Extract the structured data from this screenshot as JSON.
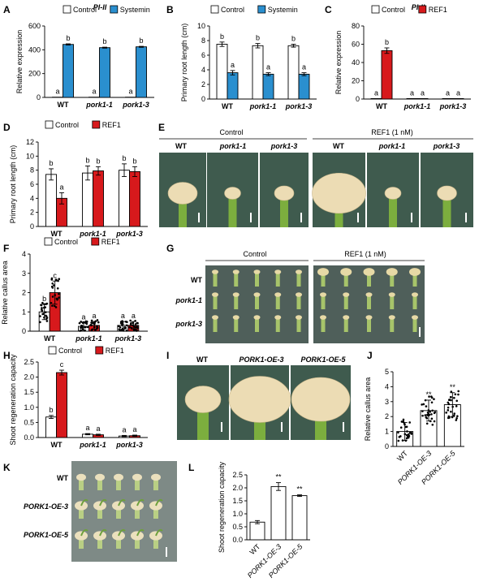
{
  "colors": {
    "control": "#ffffff",
    "systemin": "#2a8fcf",
    "ref1": "#d7191c",
    "photo_bg": "#3f5b4e",
    "stem": "#7cae3e",
    "callus": "#ecdcb4",
    "tray": "#7e8a86"
  },
  "panel_labels": {
    "A": "A",
    "B": "B",
    "C": "C",
    "D": "D",
    "E": "E",
    "F": "F",
    "G": "G",
    "H": "H",
    "I": "I",
    "J": "J",
    "K": "K",
    "L": "L"
  },
  "photo_E": {
    "group1": "Control",
    "group2": "REF1 (1 nM)",
    "cols": [
      "WT",
      "pork1-1",
      "pork1-3",
      "WT",
      "pork1-1",
      "pork1-3"
    ]
  },
  "photo_G": {
    "group1": "Control",
    "group2": "REF1 (1 nM)",
    "rows": [
      "WT",
      "pork1-1",
      "pork1-3"
    ]
  },
  "photo_I": {
    "cols": [
      "WT",
      "PORK1-OE-3",
      "PORK1-OE-5"
    ]
  },
  "photo_K": {
    "rows": [
      "WT",
      "PORK1-OE-3",
      "PORK1-OE-5"
    ]
  },
  "chart_data": [
    {
      "panel": "A",
      "type": "bar",
      "title": "PI-II",
      "ylabel": "Relative expression",
      "ylim": [
        0,
        600
      ],
      "yticks": [
        0,
        200,
        400,
        600
      ],
      "categories": [
        "WT",
        "pork1-1",
        "pork1-3"
      ],
      "series": [
        {
          "name": "Control",
          "values": [
            2,
            2,
            2
          ],
          "err": [
            0,
            0,
            0
          ],
          "letters": [
            "a",
            "a",
            "a"
          ]
        },
        {
          "name": "Systemin",
          "values": [
            445,
            418,
            425
          ],
          "err": [
            5,
            4,
            4
          ],
          "letters": [
            "b",
            "b",
            "b"
          ]
        }
      ]
    },
    {
      "panel": "B",
      "type": "bar",
      "title": "",
      "ylabel": "Primary root length (cm)",
      "ylim": [
        0,
        10
      ],
      "yticks": [
        0,
        2,
        4,
        6,
        8,
        10
      ],
      "categories": [
        "WT",
        "pork1-1",
        "pork1-3"
      ],
      "series": [
        {
          "name": "Control",
          "values": [
            7.5,
            7.3,
            7.3
          ],
          "err": [
            0.3,
            0.3,
            0.2
          ],
          "letters": [
            "b",
            "b",
            "b"
          ]
        },
        {
          "name": "Systemin",
          "values": [
            3.6,
            3.4,
            3.4
          ],
          "err": [
            0.3,
            0.2,
            0.2
          ],
          "letters": [
            "a",
            "a",
            "a"
          ]
        }
      ]
    },
    {
      "panel": "C",
      "type": "bar",
      "title": "PI-II",
      "ylabel": "Relative expression",
      "ylim": [
        0,
        80
      ],
      "yticks": [
        0,
        20,
        40,
        60,
        80
      ],
      "categories": [
        "WT",
        "pork1-1",
        "pork1-3"
      ],
      "series": [
        {
          "name": "Control",
          "values": [
            0.5,
            0.5,
            0.5
          ],
          "err": [
            0,
            0,
            0
          ],
          "letters": [
            "a",
            "a",
            "a"
          ]
        },
        {
          "name": "REF1",
          "values": [
            53,
            0.5,
            0.5
          ],
          "err": [
            3,
            0,
            0
          ],
          "letters": [
            "b",
            "a",
            "a"
          ]
        }
      ]
    },
    {
      "panel": "D",
      "type": "bar",
      "title": "",
      "ylabel": "Primary root length (cm)",
      "ylim": [
        0,
        12
      ],
      "yticks": [
        0,
        2,
        4,
        6,
        8,
        10,
        12
      ],
      "categories": [
        "WT",
        "pork1-1",
        "pork1-3"
      ],
      "series": [
        {
          "name": "Control",
          "values": [
            7.4,
            7.6,
            8.0
          ],
          "err": [
            0.8,
            1.0,
            0.9
          ],
          "letters": [
            "b",
            "b",
            "b"
          ]
        },
        {
          "name": "REF1",
          "values": [
            4.0,
            7.9,
            7.8
          ],
          "err": [
            0.8,
            0.6,
            0.7
          ],
          "letters": [
            "a",
            "b",
            "b"
          ]
        }
      ]
    },
    {
      "panel": "F",
      "type": "bar",
      "title": "",
      "ylabel": "Relative callus area",
      "ylim": [
        0,
        4
      ],
      "yticks": [
        0,
        1,
        2,
        3,
        4
      ],
      "categories": [
        "WT",
        "pork1-1",
        "pork1-3"
      ],
      "series": [
        {
          "name": "Control",
          "values": [
            1.0,
            0.25,
            0.3
          ],
          "err": [
            0.4,
            0.2,
            0.2
          ],
          "letters": [
            "b",
            "a",
            "a"
          ]
        },
        {
          "name": "REF1",
          "values": [
            2.0,
            0.3,
            0.3
          ],
          "err": [
            0.6,
            0.2,
            0.2
          ],
          "letters": [
            "c",
            "a",
            "a"
          ]
        }
      ]
    },
    {
      "panel": "H",
      "type": "bar",
      "title": "",
      "ylabel": "Shoot regeneration capacity",
      "ylim": [
        0,
        2.5
      ],
      "yticks": [
        0.0,
        0.5,
        1.0,
        1.5,
        2.0,
        2.5
      ],
      "categories": [
        "WT",
        "pork1-1",
        "pork1-3"
      ],
      "series": [
        {
          "name": "Control",
          "values": [
            0.68,
            0.11,
            0.05
          ],
          "err": [
            0.05,
            0.02,
            0.02
          ],
          "letters": [
            "b",
            "a",
            "a"
          ]
        },
        {
          "name": "REF1",
          "values": [
            2.15,
            0.09,
            0.06
          ],
          "err": [
            0.08,
            0.02,
            0.02
          ],
          "letters": [
            "c",
            "a",
            "a"
          ]
        }
      ]
    },
    {
      "panel": "J",
      "type": "bar",
      "title": "",
      "ylabel": "Relative callus area",
      "ylim": [
        0,
        5
      ],
      "yticks": [
        0,
        1,
        2,
        3,
        4,
        5
      ],
      "categories": [
        "WT",
        "PORK1-OE-3",
        "PORK1-OE-5"
      ],
      "series": [
        {
          "name": "",
          "values": [
            1.0,
            2.4,
            2.8
          ],
          "err": [
            0.6,
            0.7,
            0.8
          ],
          "letters": [
            "",
            "**",
            "**"
          ]
        }
      ]
    },
    {
      "panel": "L",
      "type": "bar",
      "title": "",
      "ylabel": "Shoot regeneration capacity",
      "ylim": [
        0,
        2.5
      ],
      "yticks": [
        0.0,
        0.5,
        1.0,
        1.5,
        2.0,
        2.5
      ],
      "categories": [
        "WT",
        "PORK1-OE-3",
        "PORK1-OE-5"
      ],
      "series": [
        {
          "name": "",
          "values": [
            0.68,
            2.05,
            1.7
          ],
          "err": [
            0.06,
            0.15,
            0.03
          ],
          "letters": [
            "",
            "**",
            "**"
          ]
        }
      ]
    }
  ]
}
